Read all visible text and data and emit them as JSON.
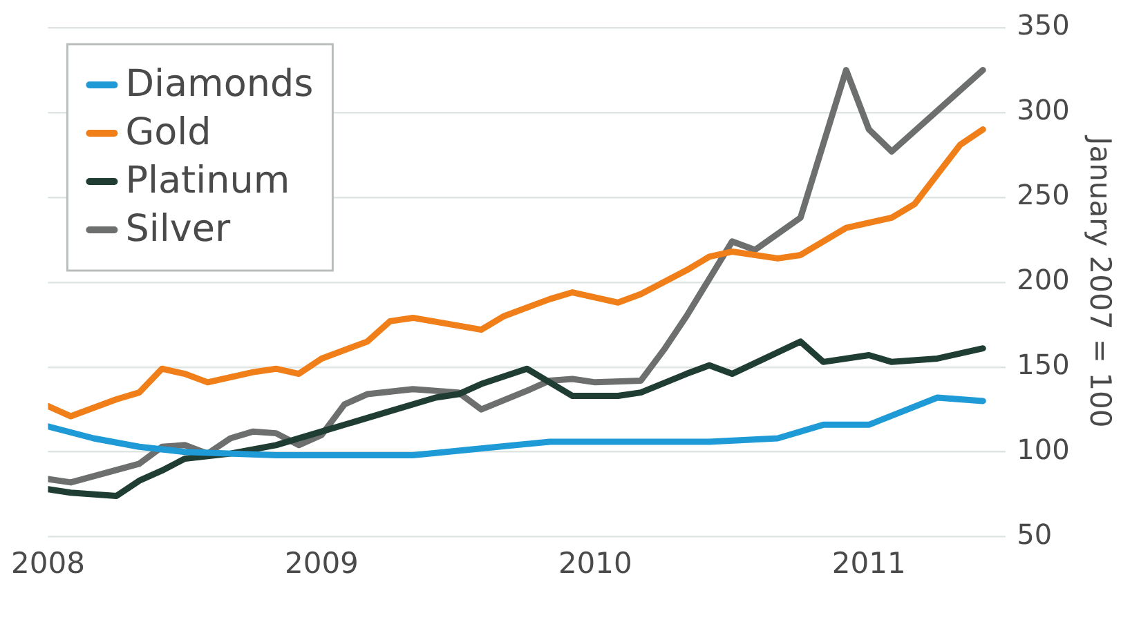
{
  "chart_data": {
    "type": "line",
    "ylabel": "January 2007 = 100",
    "ylim": [
      50,
      350
    ],
    "yticks": [
      50,
      100,
      150,
      200,
      250,
      300,
      350
    ],
    "xlim": [
      "2008-01",
      "2011-07"
    ],
    "xticks": [
      "2008",
      "2009",
      "2010",
      "2011"
    ],
    "grid": "y",
    "legend": "top left",
    "series": [
      {
        "name": "Diamonds",
        "color": "#1e9ad6",
        "x": [
          "2008-01",
          "2008-03",
          "2008-05",
          "2008-07",
          "2008-11",
          "2009-05",
          "2009-11",
          "2010-06",
          "2010-09",
          "2010-11",
          "2011-01",
          "2011-04",
          "2011-06"
        ],
        "values": [
          115,
          108,
          103,
          100,
          98,
          98,
          106,
          106,
          108,
          116,
          116,
          132,
          130
        ]
      },
      {
        "name": "Gold",
        "color": "#f07f1a",
        "x": [
          "2008-01",
          "2008-02",
          "2008-04",
          "2008-05",
          "2008-06",
          "2008-07",
          "2008-08",
          "2008-10",
          "2008-11",
          "2008-12",
          "2009-01",
          "2009-03",
          "2009-04",
          "2009-05",
          "2009-08",
          "2009-09",
          "2009-11",
          "2009-12",
          "2010-02",
          "2010-03",
          "2010-05",
          "2010-06",
          "2010-07",
          "2010-09",
          "2010-10",
          "2010-12",
          "2011-02",
          "2011-03",
          "2011-05",
          "2011-06"
        ],
        "values": [
          127,
          121,
          131,
          135,
          149,
          146,
          141,
          147,
          149,
          146,
          155,
          165,
          177,
          179,
          172,
          180,
          190,
          194,
          188,
          193,
          207,
          215,
          218,
          214,
          216,
          232,
          238,
          246,
          281,
          290
        ]
      },
      {
        "name": "Platinum",
        "color": "#1f3d33",
        "x": [
          "2008-01",
          "2008-02",
          "2008-04",
          "2008-05",
          "2008-06",
          "2008-07",
          "2008-09",
          "2008-11",
          "2009-01",
          "2009-04",
          "2009-06",
          "2009-07",
          "2009-08",
          "2009-10",
          "2009-11",
          "2009-12",
          "2010-02",
          "2010-03",
          "2010-05",
          "2010-06",
          "2010-07",
          "2010-10",
          "2010-11",
          "2011-01",
          "2011-02",
          "2011-04",
          "2011-06"
        ],
        "values": [
          78,
          76,
          74,
          83,
          89,
          96,
          99,
          104,
          112,
          124,
          132,
          134,
          140,
          149,
          141,
          133,
          133,
          135,
          146,
          151,
          146,
          165,
          153,
          157,
          153,
          155,
          161
        ]
      },
      {
        "name": "Silver",
        "color": "#6d6e6e",
        "x": [
          "2008-01",
          "2008-02",
          "2008-05",
          "2008-06",
          "2008-07",
          "2008-08",
          "2008-09",
          "2008-10",
          "2008-11",
          "2008-12",
          "2009-01",
          "2009-02",
          "2009-03",
          "2009-05",
          "2009-07",
          "2009-08",
          "2009-10",
          "2009-11",
          "2009-12",
          "2010-01",
          "2010-03",
          "2010-04",
          "2010-05",
          "2010-07",
          "2010-08",
          "2010-10",
          "2010-12",
          "2011-01",
          "2011-02",
          "2011-06"
        ],
        "values": [
          84,
          82,
          93,
          103,
          104,
          99,
          108,
          112,
          111,
          104,
          110,
          128,
          134,
          137,
          135,
          125,
          136,
          142,
          143,
          141,
          142,
          160,
          180,
          224,
          219,
          238,
          325,
          290,
          277,
          325
        ]
      }
    ]
  }
}
